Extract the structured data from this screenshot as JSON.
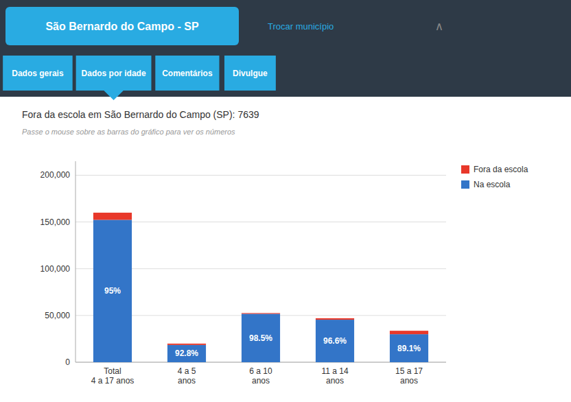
{
  "chart_data": {
    "type": "bar",
    "title": "Fora da escola em São Bernardo do Campo (SP): 7639",
    "subtitle": "Passe o mouse sobre as barras do gráfico para ver os números",
    "annotations": [
      "São Bernardo do Campo - SP",
      "Trocar município",
      "∧",
      "Dados gerais",
      "Dados por idade",
      "Comentários",
      "Divulgue"
    ],
    "categories": [
      "Total\n4 a 17 anos",
      "4 a 5\nanos",
      "6 a 10\nanos",
      "11 a 14\nanos",
      "15 a 17\nanos"
    ],
    "series": [
      {
        "name": "Na escola",
        "color": "#3375C8",
        "values": [
          152303,
          18464,
          51778,
          45438,
          29970
        ],
        "percentages": [
          95,
          92.8,
          98.5,
          96.6,
          89.1
        ],
        "percentage_labels": [
          "95%",
          "92.8%",
          "98.5%",
          "96.6%",
          "89.1%"
        ]
      },
      {
        "name": "Fora da escola",
        "color": "#E8382A",
        "values": [
          7639,
          1442,
          787,
          1597,
          3670
        ]
      }
    ],
    "stacked": true,
    "ylim": [
      0,
      215000
    ],
    "yticks": [
      0,
      {
        "value": 50000,
        "label": "50,000"
      },
      {
        "value": 100000,
        "label": "100,000"
      },
      {
        "value": 150000,
        "label": "150,000"
      },
      {
        "value": 200000,
        "label": "200,000"
      }
    ],
    "grid": true,
    "legend": "top-right"
  }
}
